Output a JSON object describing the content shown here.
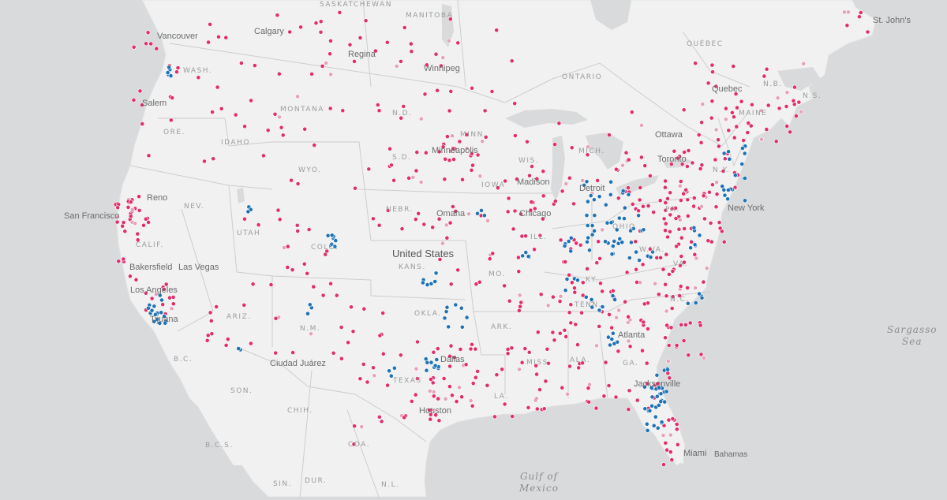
{
  "colors": {
    "water": "#d9dadb",
    "land": "#f1f1f1",
    "border": "#cfcfcf",
    "pink": "#e0306b",
    "blue": "#1f73b5",
    "lightpink": "#e6a2b7"
  },
  "labels": {
    "saskatchewan": "SASKATCHEWAN",
    "manitoba": "MANITOBA",
    "ontario": "ONTARIO",
    "quebec": "QUÉBEC",
    "wash": "WASH.",
    "montana": "MONTANA",
    "nd": "N.D.",
    "minn": "MINN.",
    "mich": "MICH.",
    "ore": "ORE.",
    "idaho": "IDAHO",
    "wyo": "WYO.",
    "sd": "S.D.",
    "wis": "WIS.",
    "nebr": "NEBR.",
    "iowa": "IOWA",
    "nev": "NEV.",
    "utah": "UTAH",
    "calif": "CALIF.",
    "colo": "COLO.",
    "kans": "KANS.",
    "mo": "MO.",
    "ill": "ILL.",
    "ohio": "OHIO",
    "pa": "PA.",
    "ny": "N.Y.",
    "me": "MAINE",
    "nb": "N.B.",
    "ns": "N.S.",
    "ky": "KY.",
    "wva": "W.VA.",
    "va": "VA.",
    "nc": "N.C.",
    "tenn": "TENN.",
    "ariz": "ARIZ.",
    "nm": "N.M.",
    "okla": "OKLA.",
    "ark": "ARK.",
    "miss": "MISS.",
    "ala": "ALA.",
    "ga": "GA.",
    "texas": "TEXAS",
    "la": "LA.",
    "bc_mx": "B.C.",
    "son": "SON.",
    "chih": "CHIH.",
    "bcs": "B.C.S.",
    "coa": "COA.",
    "sin": "SIN.",
    "dur": "DUR.",
    "nl": "N.L."
  },
  "cities": {
    "vancouver": "Vancouver",
    "calgary": "Calgary",
    "regina": "Regina",
    "winnipeg": "Winnipeg",
    "stjohns": "St. John's",
    "quebec": "Quebec",
    "ottawa": "Ottawa",
    "toronto": "Toronto",
    "salem": "Salem",
    "minneapolis": "Minneapolis",
    "madison": "Madison",
    "detroit": "Detroit",
    "chicago": "Chicago",
    "omaha": "Omaha",
    "reno": "Reno",
    "sanfrancisco": "San Francisco",
    "bakersfield": "Bakersfield",
    "lasvegas": "Las Vegas",
    "losangeles": "Los Angeles",
    "tijuana": "Tijuana",
    "newyork": "New York",
    "atlanta": "Atlanta",
    "dallas": "Dallas",
    "ciudadjuarez": "Ciudad Juárez",
    "houston": "Houston",
    "jacksonville": "Jacksonville",
    "miami": "Miami",
    "bahamas": "Bahamas"
  },
  "country": {
    "us": "United States"
  },
  "water": {
    "sargasso_1": "Sargasso",
    "sargasso_2": "Sea",
    "gulf_1": "Gulf of",
    "gulf_2": "Mexico"
  }
}
